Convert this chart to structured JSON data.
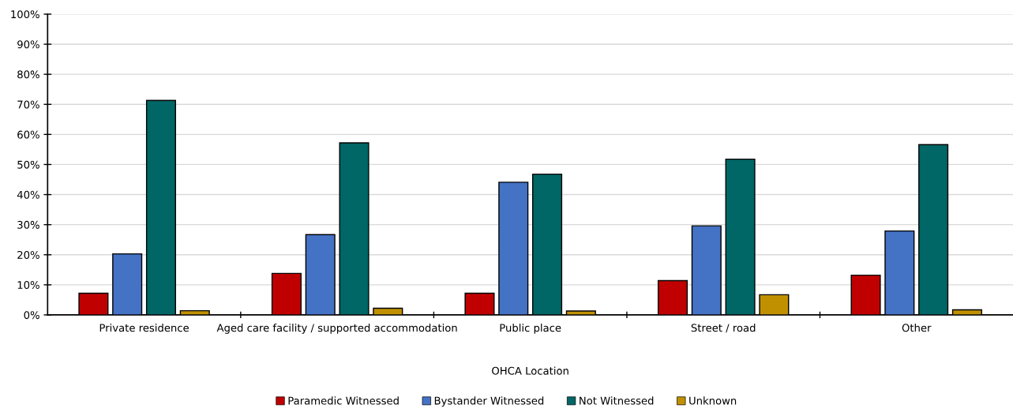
{
  "chart_data": {
    "type": "bar",
    "xlabel": "OHCA Location",
    "categories": [
      "Private residence",
      "Aged care facility / supported accommodation",
      "Public place",
      "Street / road",
      "Other"
    ],
    "series": [
      {
        "name": "Paramedic Witnessed",
        "color": "#c00000",
        "values": [
          7.2,
          13.8,
          7.2,
          11.4,
          13.2
        ]
      },
      {
        "name": "Bystander Witnessed",
        "color": "#4472c4",
        "values": [
          20.3,
          26.7,
          44.1,
          29.6,
          27.9
        ]
      },
      {
        "name": "Not Witnessed",
        "color": "#006666",
        "values": [
          71.3,
          57.2,
          46.8,
          51.8,
          56.6
        ]
      },
      {
        "name": "Unknown",
        "color": "#c09000",
        "values": [
          1.4,
          2.2,
          1.3,
          6.7,
          1.7
        ]
      }
    ],
    "ylim": [
      0,
      100
    ],
    "yticks": [
      {
        "value": 0,
        "label": "0%"
      },
      {
        "value": 10,
        "label": "10%"
      },
      {
        "value": 20,
        "label": "20%"
      },
      {
        "value": 30,
        "label": "30%"
      },
      {
        "value": 40,
        "label": "40%"
      },
      {
        "value": 50,
        "label": "50%"
      },
      {
        "value": 60,
        "label": "60%"
      },
      {
        "value": 70,
        "label": "70%"
      },
      {
        "value": 80,
        "label": "80%"
      },
      {
        "value": 90,
        "label": "90%"
      },
      {
        "value": 100,
        "label": "100%"
      }
    ],
    "grid": "y",
    "legend": "bottom"
  }
}
